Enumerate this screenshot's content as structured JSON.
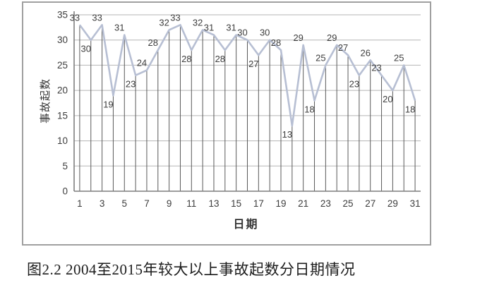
{
  "figure_caption": "图2.2 2004至2015年较大以上事故起数分日期情况",
  "chart_data": {
    "type": "line",
    "title": "",
    "xlabel": "日期",
    "ylabel": "事故起数",
    "categories": [
      1,
      2,
      3,
      4,
      5,
      6,
      7,
      8,
      9,
      10,
      11,
      12,
      13,
      14,
      15,
      16,
      17,
      18,
      19,
      20,
      21,
      22,
      23,
      24,
      25,
      26,
      27,
      28,
      29,
      30,
      31
    ],
    "values": [
      33,
      30,
      33,
      19,
      31,
      23,
      24,
      28,
      32,
      33,
      28,
      32,
      31,
      28,
      31,
      30,
      27,
      30,
      28,
      13,
      29,
      18,
      25,
      29,
      27,
      23,
      26,
      23,
      20,
      25,
      18
    ],
    "ylim": [
      0,
      35
    ],
    "yticks": [
      0,
      5,
      10,
      15,
      20,
      25,
      30,
      35
    ],
    "xticks": [
      1,
      3,
      5,
      7,
      9,
      11,
      13,
      15,
      17,
      19,
      21,
      23,
      25,
      27,
      29,
      31
    ],
    "grid": "horizontal-major",
    "legend": "none",
    "drop_lines": true,
    "data_labels": true,
    "colors": {
      "series_line": "#b7bfd3",
      "drop_line": "#595959",
      "axis": "#7f7f7f",
      "gridline": "#b5b5b5",
      "data_label": "#3d3d3d",
      "tick_label": "#3d3d3d",
      "frame_border": "#a0a0a0"
    }
  }
}
